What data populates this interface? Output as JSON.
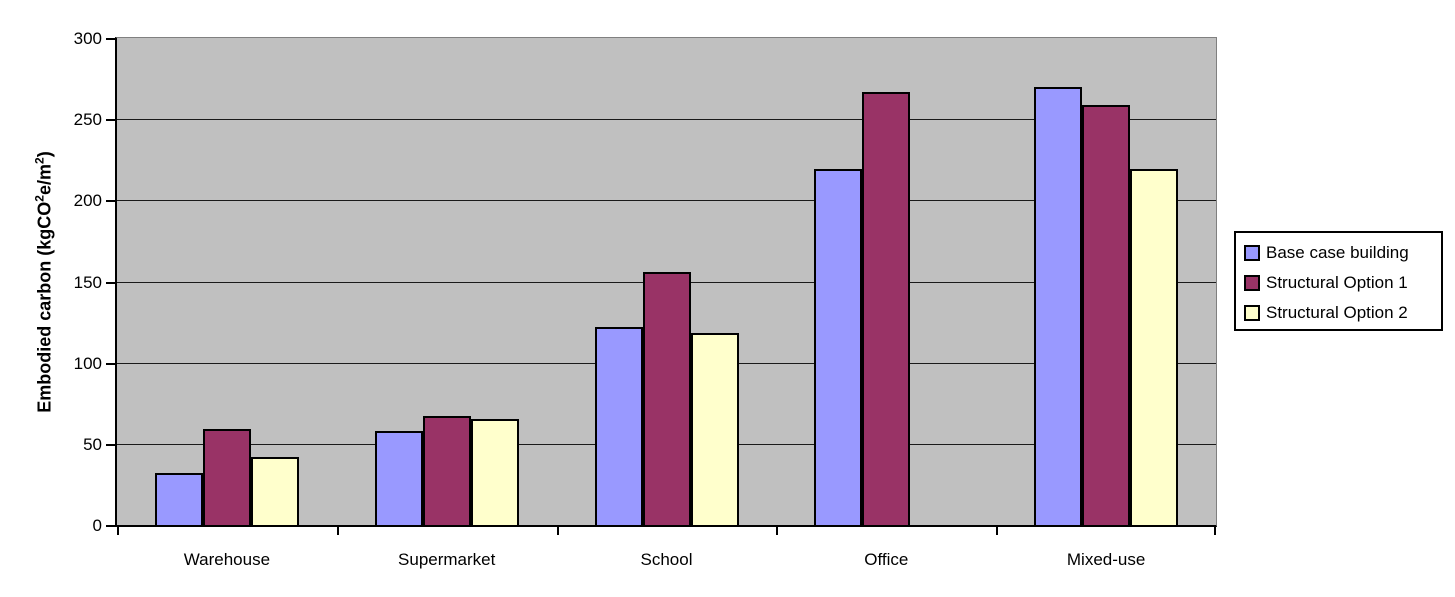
{
  "chart_data": {
    "type": "bar",
    "categories": [
      "Warehouse",
      "Supermarket",
      "School",
      "Office",
      "Mixed-use"
    ],
    "series": [
      {
        "name": "Base case building",
        "color": "#9999FF",
        "values": [
          32,
          58,
          122,
          219,
          270
        ]
      },
      {
        "name": "Structural Option 1",
        "color": "#993366",
        "values": [
          59,
          67,
          156,
          267,
          259
        ]
      },
      {
        "name": "Structural Option 2",
        "color": "#FFFFCC",
        "values": [
          42,
          65,
          118,
          0,
          219
        ]
      }
    ],
    "ylabel": "Embodied carbon (kgCO2e/m2)",
    "ylabel_parts": [
      {
        "t": "Embodied carbon (kgCO"
      },
      {
        "t": "2",
        "sup": true
      },
      {
        "t": "e/m"
      },
      {
        "t": "2",
        "sup": true
      },
      {
        "t": ")"
      }
    ],
    "xlabel": "",
    "ylim": [
      0,
      300
    ],
    "yticks": [
      0,
      50,
      100,
      150,
      200,
      250,
      300
    ],
    "grid": true,
    "legend_position": "right",
    "plot_bg": "#C0C0C0",
    "axis_color": "#000000",
    "gridline_color": "#1a1a1a"
  }
}
